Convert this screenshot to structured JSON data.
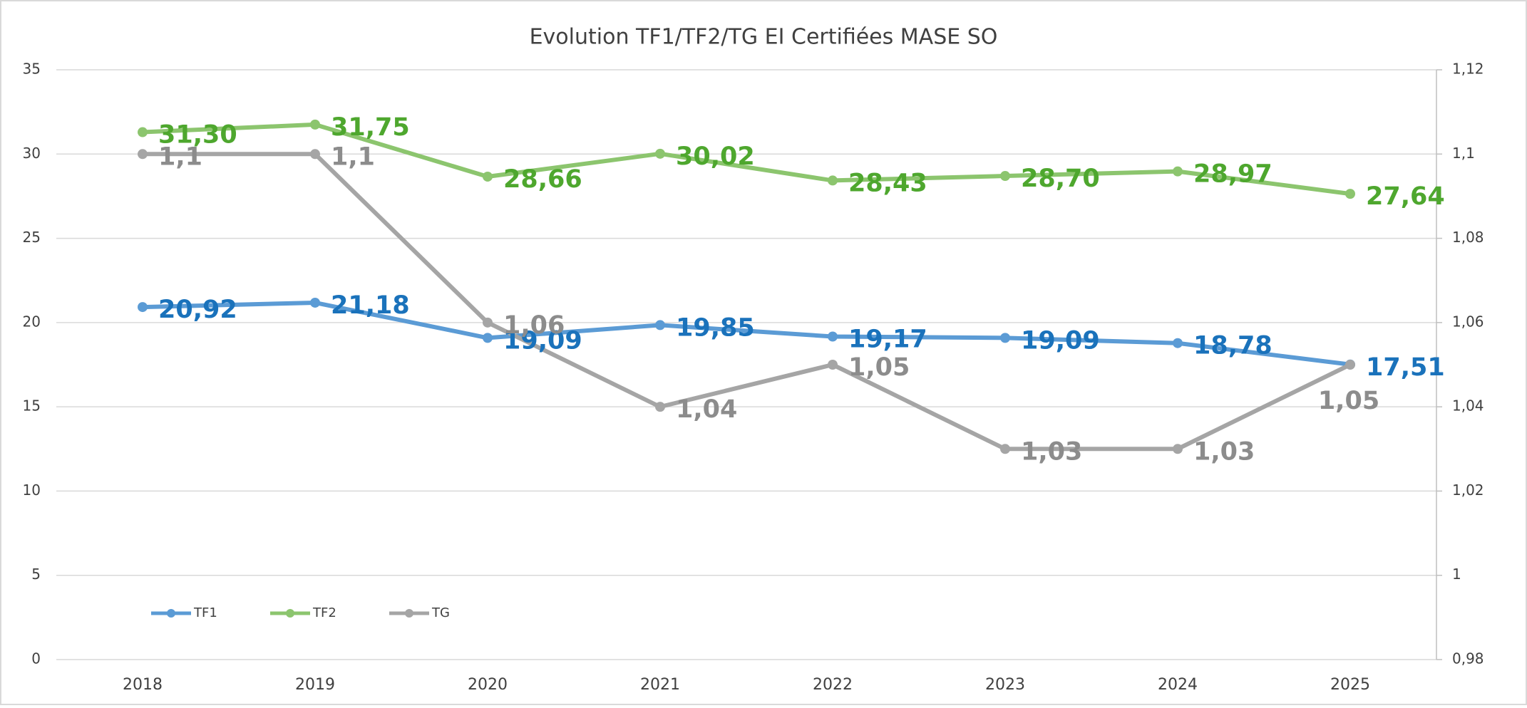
{
  "chart_data": {
    "type": "line",
    "title": "Evolution TF1/TF2/TG EI Certifiées MASE SO",
    "categories": [
      "2018",
      "2019",
      "2020",
      "2021",
      "2022",
      "2023",
      "2024",
      "2025"
    ],
    "series": [
      {
        "name": "TF1",
        "color": "#5b9bd5",
        "label_color": "#1a72bb",
        "values": [
          20.92,
          21.18,
          19.09,
          19.85,
          19.17,
          19.09,
          18.78,
          17.51
        ],
        "value_labels": [
          "20,92",
          "21,18",
          "19,09",
          "19,85",
          "19,17",
          "19,09",
          "18,78",
          "17,51"
        ]
      },
      {
        "name": "TF2",
        "color": "#8cc56e",
        "label_color": "#4ea72e",
        "values": [
          31.3,
          31.75,
          28.66,
          30.02,
          28.43,
          28.7,
          28.97,
          27.64
        ],
        "value_labels": [
          "31,30",
          "31,75",
          "28,66",
          "30,02",
          "28,43",
          "28,70",
          "28,97",
          "27,64"
        ]
      },
      {
        "name": "TG",
        "color": "#a5a5a5",
        "label_color": "#8c8c8c",
        "axis": "y2",
        "values": [
          1.1,
          1.1,
          1.06,
          1.04,
          1.05,
          1.03,
          1.03,
          1.05
        ],
        "value_labels": [
          "1,1",
          "1,1",
          "1,06",
          "1,04",
          "1,05",
          "1,03",
          "1,03",
          "1,05"
        ]
      }
    ],
    "ylim": [
      0,
      35
    ],
    "yticks": [
      0,
      5,
      10,
      15,
      20,
      25,
      30,
      35
    ],
    "y2lim": [
      0.98,
      1.12
    ],
    "y2ticks": [
      {
        "value": 0.98,
        "label": "0,98"
      },
      1,
      {
        "value": 1.02,
        "label": "1,02"
      },
      {
        "value": 1.04,
        "label": "1,04"
      },
      {
        "value": 1.06,
        "label": "1,06"
      },
      {
        "value": 1.08,
        "label": "1,08"
      },
      {
        "value": 1.1,
        "label": "1,1"
      },
      {
        "value": 1.12,
        "label": "1,12"
      }
    ],
    "grid": true,
    "legend": "bottom-left"
  }
}
